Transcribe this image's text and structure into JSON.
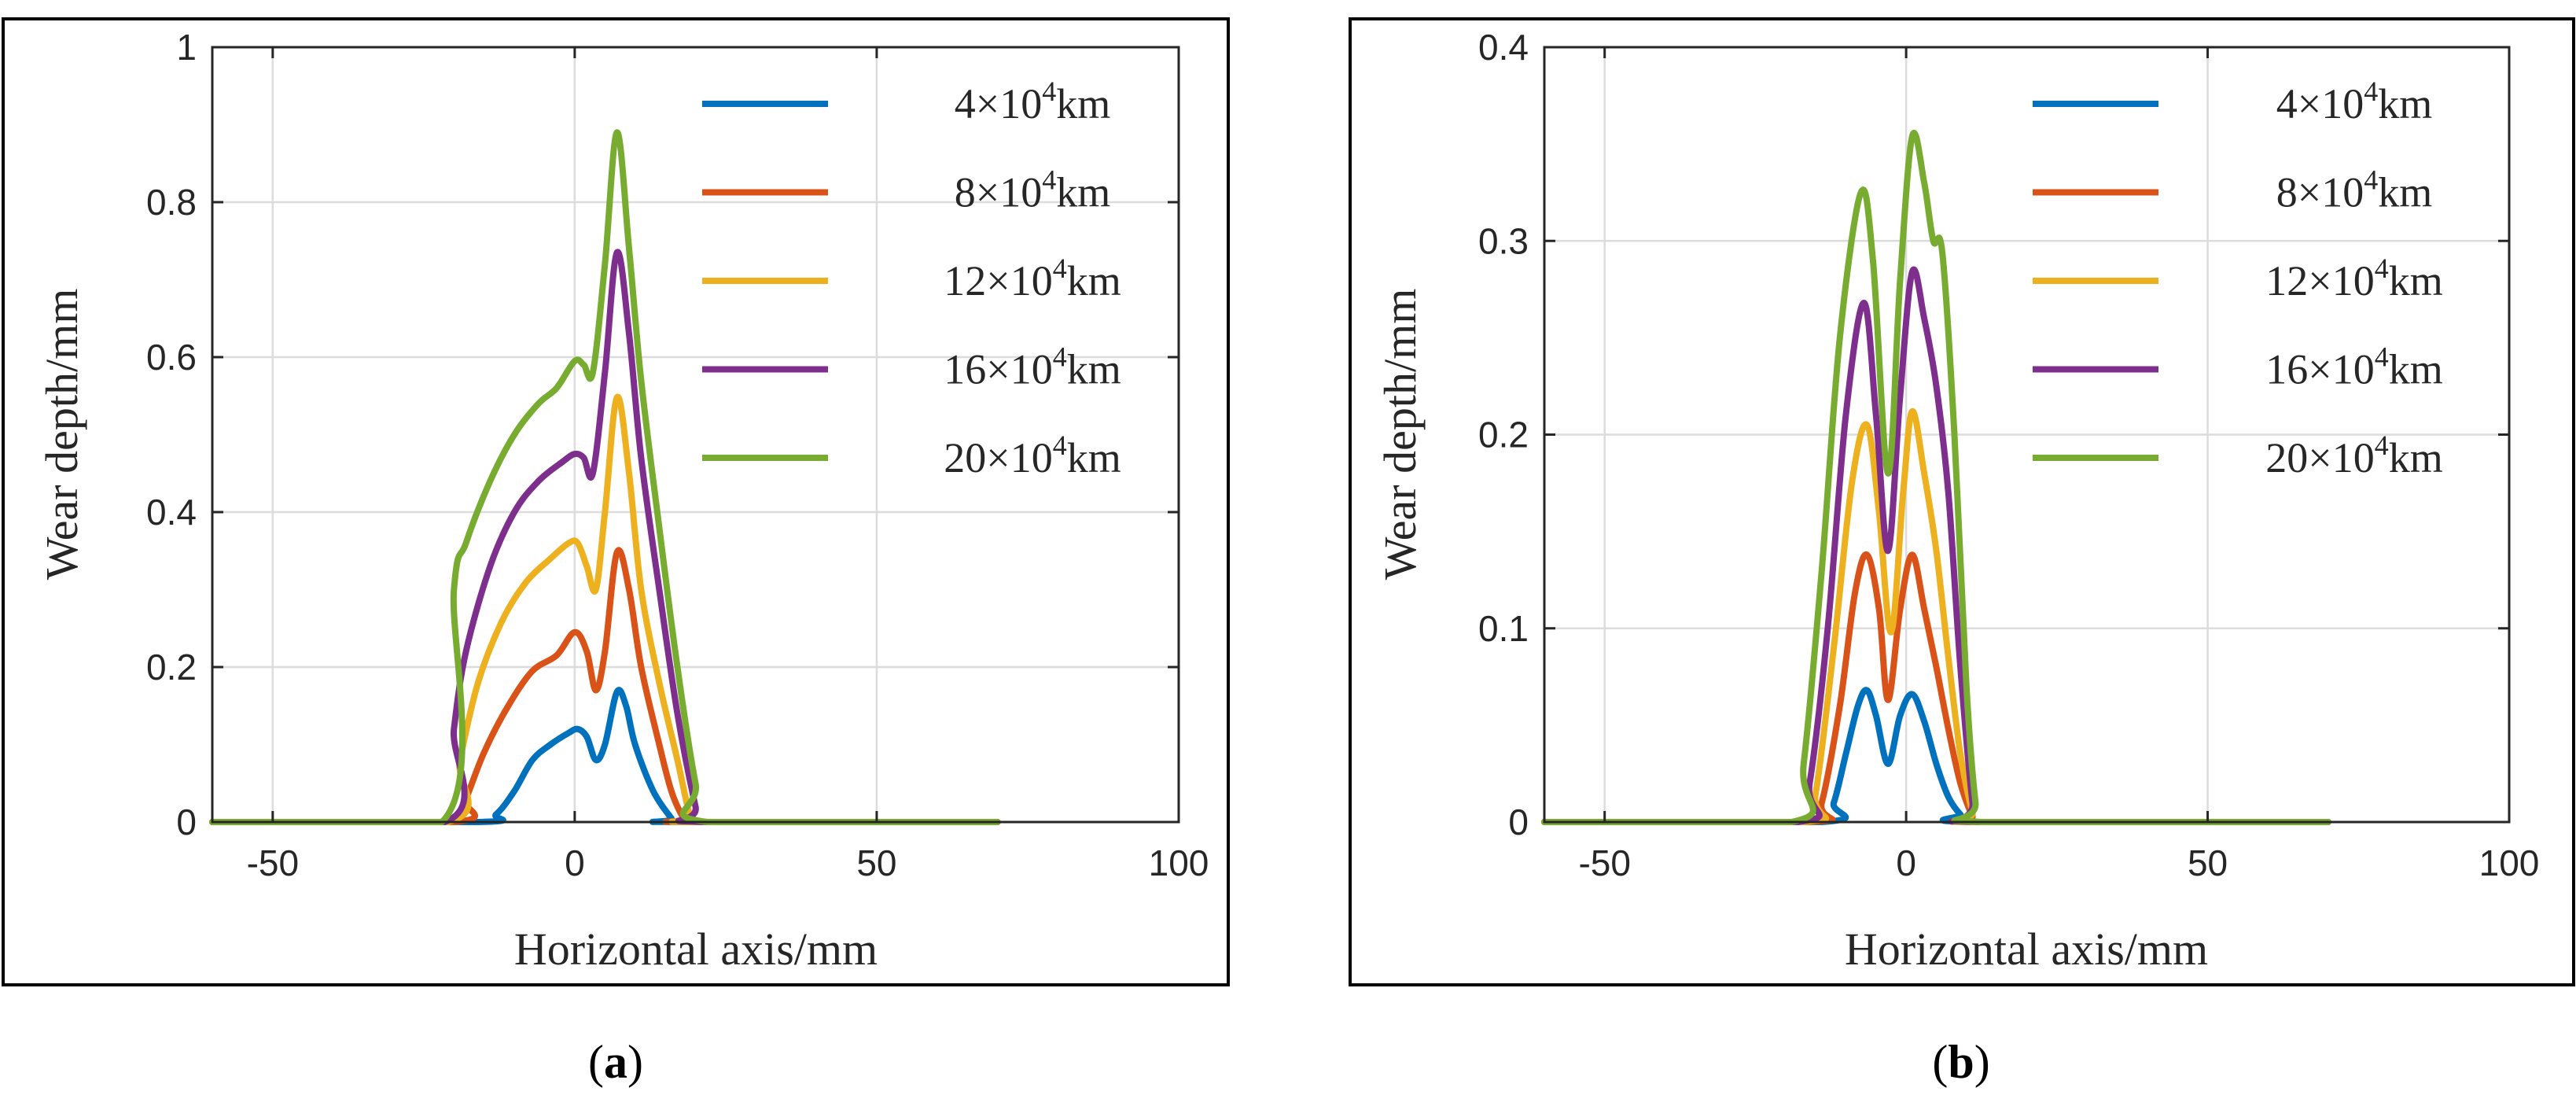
{
  "chart_data": [
    {
      "panel": "a",
      "caption": {
        "open": "(",
        "letter": "a",
        "close": ")"
      },
      "type": "line",
      "xlabel": "Horizontal axis/mm",
      "ylabel": "Wear depth/mm",
      "xlim": [
        -60,
        100
      ],
      "ylim": [
        0,
        1
      ],
      "xticks": [
        -50,
        0,
        50,
        100
      ],
      "yticks": [
        0,
        0.2,
        0.4,
        0.6,
        0.8,
        1
      ],
      "grid": true,
      "legend_position": "top-right",
      "series": [
        {
          "name": "4×10⁴km",
          "legend": {
            "mult": "4×10",
            "exp": "4",
            "unit": "km"
          },
          "color": "#0072BD",
          "points": [
            [
              -60,
              0
            ],
            [
              -16,
              0
            ],
            [
              -13,
              0.01
            ],
            [
              -10,
              0.04
            ],
            [
              -7,
              0.08
            ],
            [
              -4,
              0.1
            ],
            [
              -1,
              0.115
            ],
            [
              0.5,
              0.12
            ],
            [
              2,
              0.11
            ],
            [
              3.5,
              0.08
            ],
            [
              5,
              0.1
            ],
            [
              7,
              0.168
            ],
            [
              8.5,
              0.15
            ],
            [
              10,
              0.1
            ],
            [
              13,
              0.04
            ],
            [
              16,
              0.005
            ],
            [
              17,
              0
            ],
            [
              70,
              0
            ]
          ]
        },
        {
          "name": "8×10⁴km",
          "legend": {
            "mult": "8×10",
            "exp": "4",
            "unit": "km"
          },
          "color": "#D95319",
          "points": [
            [
              -60,
              0
            ],
            [
              -20,
              0
            ],
            [
              -18,
              0.03
            ],
            [
              -15,
              0.09
            ],
            [
              -11,
              0.15
            ],
            [
              -7,
              0.195
            ],
            [
              -3,
              0.215
            ],
            [
              0,
              0.245
            ],
            [
              2,
              0.22
            ],
            [
              3.5,
              0.17
            ],
            [
              5,
              0.22
            ],
            [
              7,
              0.348
            ],
            [
              9,
              0.3
            ],
            [
              11,
              0.2
            ],
            [
              14,
              0.1
            ],
            [
              16,
              0.04
            ],
            [
              18,
              0.005
            ],
            [
              19,
              0
            ],
            [
              70,
              0
            ]
          ]
        },
        {
          "name": "12×10⁴km",
          "legend": {
            "mult": "12×10",
            "exp": "4",
            "unit": "km"
          },
          "color": "#EDB120",
          "points": [
            [
              -60,
              0
            ],
            [
              -21,
              0
            ],
            [
              -19,
              0.08
            ],
            [
              -16,
              0.18
            ],
            [
              -12,
              0.26
            ],
            [
              -8,
              0.31
            ],
            [
              -4,
              0.34
            ],
            [
              -1,
              0.36
            ],
            [
              0.5,
              0.36
            ],
            [
              2,
              0.33
            ],
            [
              3.5,
              0.3
            ],
            [
              5,
              0.4
            ],
            [
              7,
              0.548
            ],
            [
              9,
              0.45
            ],
            [
              11,
              0.3
            ],
            [
              14,
              0.18
            ],
            [
              17,
              0.08
            ],
            [
              19,
              0.01
            ],
            [
              20,
              0
            ],
            [
              70,
              0
            ]
          ]
        },
        {
          "name": "16×10⁴km",
          "legend": {
            "mult": "16×10",
            "exp": "4",
            "unit": "km"
          },
          "color": "#7E2F8E",
          "points": [
            [
              -60,
              0
            ],
            [
              -21.5,
              0
            ],
            [
              -20,
              0.12
            ],
            [
              -18,
              0.22
            ],
            [
              -14,
              0.33
            ],
            [
              -10,
              0.4
            ],
            [
              -6,
              0.44
            ],
            [
              -2,
              0.465
            ],
            [
              0,
              0.475
            ],
            [
              1.5,
              0.47
            ],
            [
              3,
              0.45
            ],
            [
              5,
              0.58
            ],
            [
              7,
              0.735
            ],
            [
              9,
              0.63
            ],
            [
              11,
              0.47
            ],
            [
              14,
              0.3
            ],
            [
              17,
              0.14
            ],
            [
              20,
              0.02
            ],
            [
              21,
              0
            ],
            [
              70,
              0
            ]
          ]
        },
        {
          "name": "20×10⁴km",
          "legend": {
            "mult": "20×10",
            "exp": "4",
            "unit": "km"
          },
          "color": "#77AC30",
          "points": [
            [
              -60,
              0
            ],
            [
              -22,
              0
            ],
            [
              -20,
              0.3
            ],
            [
              -18,
              0.36
            ],
            [
              -14,
              0.44
            ],
            [
              -10,
              0.5
            ],
            [
              -6,
              0.54
            ],
            [
              -3,
              0.56
            ],
            [
              0,
              0.595
            ],
            [
              1.5,
              0.59
            ],
            [
              3,
              0.58
            ],
            [
              5,
              0.72
            ],
            [
              7,
              0.89
            ],
            [
              9,
              0.74
            ],
            [
              11,
              0.57
            ],
            [
              14,
              0.38
            ],
            [
              17,
              0.2
            ],
            [
              20,
              0.05
            ],
            [
              22,
              0
            ],
            [
              70,
              0
            ]
          ]
        }
      ]
    },
    {
      "panel": "b",
      "caption": {
        "open": "(",
        "letter": "b",
        "close": ")"
      },
      "type": "line",
      "xlabel": "Horizontal axis/mm",
      "ylabel": "Wear depth/mm",
      "xlim": [
        -60,
        100
      ],
      "ylim": [
        0,
        0.4
      ],
      "xticks": [
        -50,
        0,
        50,
        100
      ],
      "yticks": [
        0,
        0.1,
        0.2,
        0.3,
        0.4
      ],
      "grid": true,
      "legend_position": "top-right",
      "series": [
        {
          "name": "4×10⁴km",
          "legend": {
            "mult": "4×10",
            "exp": "4",
            "unit": "km"
          },
          "color": "#0072BD",
          "points": [
            [
              -60,
              0
            ],
            [
              -14,
              0
            ],
            [
              -12,
              0.01
            ],
            [
              -10,
              0.035
            ],
            [
              -8,
              0.06
            ],
            [
              -6.5,
              0.068
            ],
            [
              -5,
              0.055
            ],
            [
              -3,
              0.03
            ],
            [
              -1,
              0.055
            ],
            [
              1,
              0.066
            ],
            [
              3,
              0.052
            ],
            [
              5,
              0.03
            ],
            [
              7,
              0.013
            ],
            [
              9,
              0.004
            ],
            [
              11,
              0
            ],
            [
              70,
              0
            ]
          ]
        },
        {
          "name": "8×10⁴km",
          "legend": {
            "mult": "8×10",
            "exp": "4",
            "unit": "km"
          },
          "color": "#D95319",
          "points": [
            [
              -60,
              0
            ],
            [
              -16,
              0
            ],
            [
              -14,
              0.01
            ],
            [
              -11,
              0.06
            ],
            [
              -8.5,
              0.118
            ],
            [
              -6.5,
              0.138
            ],
            [
              -4.5,
              0.11
            ],
            [
              -3,
              0.063
            ],
            [
              -1,
              0.11
            ],
            [
              1,
              0.138
            ],
            [
              3,
              0.11
            ],
            [
              5,
              0.08
            ],
            [
              7,
              0.048
            ],
            [
              9,
              0.02
            ],
            [
              11,
              0.003
            ],
            [
              12,
              0
            ],
            [
              70,
              0
            ]
          ]
        },
        {
          "name": "12×10⁴km",
          "legend": {
            "mult": "12×10",
            "exp": "4",
            "unit": "km"
          },
          "color": "#EDB120",
          "points": [
            [
              -60,
              0
            ],
            [
              -17,
              0
            ],
            [
              -15,
              0.015
            ],
            [
              -12,
              0.09
            ],
            [
              -9,
              0.175
            ],
            [
              -6.5,
              0.205
            ],
            [
              -4.5,
              0.16
            ],
            [
              -2.5,
              0.098
            ],
            [
              -0.5,
              0.17
            ],
            [
              1,
              0.212
            ],
            [
              3,
              0.18
            ],
            [
              5,
              0.14
            ],
            [
              7,
              0.085
            ],
            [
              9,
              0.035
            ],
            [
              11,
              0.005
            ],
            [
              12,
              0
            ],
            [
              70,
              0
            ]
          ]
        },
        {
          "name": "16×10⁴km",
          "legend": {
            "mult": "16×10",
            "exp": "4",
            "unit": "km"
          },
          "color": "#7E2F8E",
          "points": [
            [
              -60,
              0
            ],
            [
              -18,
              0
            ],
            [
              -16,
              0.02
            ],
            [
              -13,
              0.1
            ],
            [
              -10,
              0.21
            ],
            [
              -7,
              0.268
            ],
            [
              -5,
              0.21
            ],
            [
              -3,
              0.14
            ],
            [
              -1,
              0.22
            ],
            [
              1,
              0.284
            ],
            [
              3,
              0.26
            ],
            [
              5,
              0.225
            ],
            [
              7,
              0.17
            ],
            [
              9,
              0.08
            ],
            [
              11,
              0.01
            ],
            [
              12,
              0
            ],
            [
              70,
              0
            ]
          ]
        },
        {
          "name": "20×10⁴km",
          "legend": {
            "mult": "20×10",
            "exp": "4",
            "unit": "km"
          },
          "color": "#77AC30",
          "points": [
            [
              -60,
              0
            ],
            [
              -19,
              0
            ],
            [
              -17,
              0.03
            ],
            [
              -14,
              0.13
            ],
            [
              -11,
              0.25
            ],
            [
              -7.5,
              0.325
            ],
            [
              -5.5,
              0.29
            ],
            [
              -3,
              0.18
            ],
            [
              -1,
              0.28
            ],
            [
              1,
              0.354
            ],
            [
              3,
              0.33
            ],
            [
              4.5,
              0.3
            ],
            [
              6,
              0.294
            ],
            [
              8,
              0.2
            ],
            [
              10,
              0.07
            ],
            [
              11.5,
              0.01
            ],
            [
              12.5,
              0
            ],
            [
              70,
              0
            ]
          ]
        }
      ]
    }
  ]
}
